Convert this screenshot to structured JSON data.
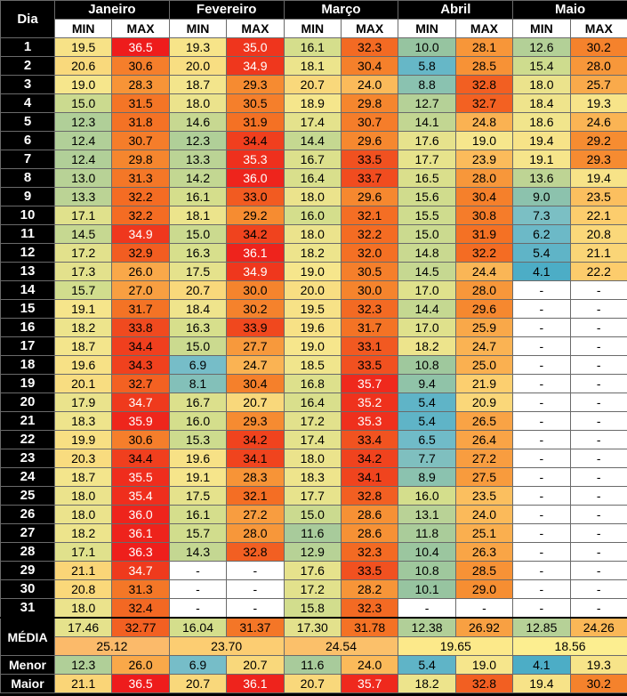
{
  "header": {
    "dia": "Dia",
    "min": "MIN",
    "max": "MAX",
    "months": [
      "Janeiro",
      "Fevereiro",
      "Março",
      "Abril",
      "Maio"
    ]
  },
  "days": [
    "1",
    "2",
    "3",
    "4",
    "5",
    "6",
    "7",
    "8",
    "9",
    "10",
    "11",
    "12",
    "13",
    "14",
    "15",
    "16",
    "17",
    "18",
    "19",
    "20",
    "21",
    "22",
    "23",
    "24",
    "25",
    "26",
    "27",
    "28",
    "29",
    "30",
    "31"
  ],
  "data": [
    [
      "19.5",
      "36.5",
      "19.3",
      "35.0",
      "16.1",
      "32.3",
      "10.0",
      "28.1",
      "12.6",
      "30.2"
    ],
    [
      "20.6",
      "30.6",
      "20.0",
      "34.9",
      "18.1",
      "30.4",
      "5.8",
      "28.5",
      "15.4",
      "28.0"
    ],
    [
      "19.0",
      "28.3",
      "18.7",
      "29.3",
      "20.7",
      "24.0",
      "8.8",
      "32.8",
      "18.0",
      "25.7"
    ],
    [
      "15.0",
      "31.5",
      "18.0",
      "30.5",
      "18.9",
      "29.8",
      "12.7",
      "32.7",
      "18.4",
      "19.3"
    ],
    [
      "12.3",
      "31.8",
      "14.6",
      "31.9",
      "17.4",
      "30.7",
      "14.1",
      "24.8",
      "18.6",
      "24.6"
    ],
    [
      "12.4",
      "30.7",
      "12.3",
      "34.4",
      "14.4",
      "29.6",
      "17.6",
      "19.0",
      "19.4",
      "29.2"
    ],
    [
      "12.4",
      "29.8",
      "13.3",
      "35.3",
      "16.7",
      "33.5",
      "17.7",
      "23.9",
      "19.1",
      "29.3"
    ],
    [
      "13.0",
      "31.3",
      "14.2",
      "36.0",
      "16.4",
      "33.7",
      "16.5",
      "28.0",
      "13.6",
      "19.4"
    ],
    [
      "13.3",
      "32.2",
      "16.1",
      "33.0",
      "18.0",
      "29.6",
      "15.6",
      "30.4",
      "9.0",
      "23.5"
    ],
    [
      "17.1",
      "32.2",
      "18.1",
      "29.2",
      "16.0",
      "32.1",
      "15.5",
      "30.8",
      "7.3",
      "22.1"
    ],
    [
      "14.5",
      "34.9",
      "15.0",
      "34.2",
      "18.0",
      "32.2",
      "15.0",
      "31.9",
      "6.2",
      "20.8"
    ],
    [
      "17.2",
      "32.9",
      "16.3",
      "36.1",
      "18.2",
      "32.0",
      "14.8",
      "32.2",
      "5.4",
      "21.1"
    ],
    [
      "17.3",
      "26.0",
      "17.5",
      "34.9",
      "19.0",
      "30.5",
      "14.5",
      "24.4",
      "4.1",
      "22.2"
    ],
    [
      "15.7",
      "27.0",
      "20.7",
      "30.0",
      "20.0",
      "30.0",
      "17.0",
      "28.0",
      "-",
      "-"
    ],
    [
      "19.1",
      "31.7",
      "18.4",
      "30.2",
      "19.5",
      "32.3",
      "14.4",
      "29.6",
      "-",
      "-"
    ],
    [
      "18.2",
      "33.8",
      "16.3",
      "33.9",
      "19.6",
      "31.7",
      "17.0",
      "25.9",
      "-",
      "-"
    ],
    [
      "18.7",
      "34.4",
      "15.0",
      "27.7",
      "19.0",
      "33.1",
      "18.2",
      "24.7",
      "-",
      "-"
    ],
    [
      "19.6",
      "34.3",
      "6.9",
      "24.7",
      "18.5",
      "33.5",
      "10.8",
      "25.0",
      "-",
      "-"
    ],
    [
      "20.1",
      "32.7",
      "8.1",
      "30.4",
      "16.8",
      "35.7",
      "9.4",
      "21.9",
      "-",
      "-"
    ],
    [
      "17.9",
      "34.7",
      "16.7",
      "20.7",
      "16.4",
      "35.2",
      "5.4",
      "20.9",
      "-",
      "-"
    ],
    [
      "18.3",
      "35.9",
      "16.0",
      "29.3",
      "17.2",
      "35.3",
      "5.4",
      "26.5",
      "-",
      "-"
    ],
    [
      "19.9",
      "30.6",
      "15.3",
      "34.2",
      "17.4",
      "33.4",
      "6.5",
      "26.4",
      "-",
      "-"
    ],
    [
      "20.3",
      "34.4",
      "19.6",
      "34.1",
      "18.0",
      "34.2",
      "7.7",
      "27.2",
      "-",
      "-"
    ],
    [
      "18.7",
      "35.5",
      "19.1",
      "28.3",
      "18.3",
      "34.1",
      "8.9",
      "27.5",
      "-",
      "-"
    ],
    [
      "18.0",
      "35.4",
      "17.5",
      "32.1",
      "17.7",
      "32.8",
      "16.0",
      "23.5",
      "-",
      "-"
    ],
    [
      "18.0",
      "36.0",
      "16.1",
      "27.2",
      "15.0",
      "28.6",
      "13.1",
      "24.0",
      "-",
      "-"
    ],
    [
      "18.2",
      "36.1",
      "15.7",
      "28.0",
      "11.6",
      "28.6",
      "11.8",
      "25.1",
      "-",
      "-"
    ],
    [
      "17.1",
      "36.3",
      "14.3",
      "32.8",
      "12.9",
      "32.3",
      "10.4",
      "26.3",
      "-",
      "-"
    ],
    [
      "21.1",
      "34.7",
      "-",
      "-",
      "17.6",
      "33.5",
      "10.8",
      "28.5",
      "-",
      "-"
    ],
    [
      "20.8",
      "31.3",
      "-",
      "-",
      "17.2",
      "28.2",
      "10.1",
      "29.0",
      "-",
      "-"
    ],
    [
      "18.0",
      "32.4",
      "-",
      "-",
      "15.8",
      "32.3",
      "-",
      "-",
      "-",
      "-"
    ]
  ],
  "summary": {
    "media_label": "MÉDIA",
    "media": [
      "17.46",
      "32.77",
      "16.04",
      "31.37",
      "17.30",
      "31.78",
      "12.38",
      "26.92",
      "12.85",
      "24.26"
    ],
    "media_total": [
      "25.12",
      "23.70",
      "24.54",
      "19.65",
      "18.56"
    ],
    "menor_label": "Menor",
    "menor": [
      "12.3",
      "26.0",
      "6.9",
      "20.7",
      "11.6",
      "24.0",
      "5.4",
      "19.0",
      "4.1",
      "19.3"
    ],
    "maior_label": "Maior",
    "maior": [
      "21.1",
      "36.5",
      "20.7",
      "36.1",
      "20.7",
      "35.7",
      "18.2",
      "32.8",
      "19.4",
      "30.2"
    ]
  },
  "colors": {
    "blank": "#ffffff",
    "header_bg": "#000000",
    "header_text": "#ffffff",
    "avg_total_bg": [
      "#fbba6a",
      "#fccd72",
      "#fbc06a",
      "#fce98a",
      "#fcee90"
    ]
  }
}
